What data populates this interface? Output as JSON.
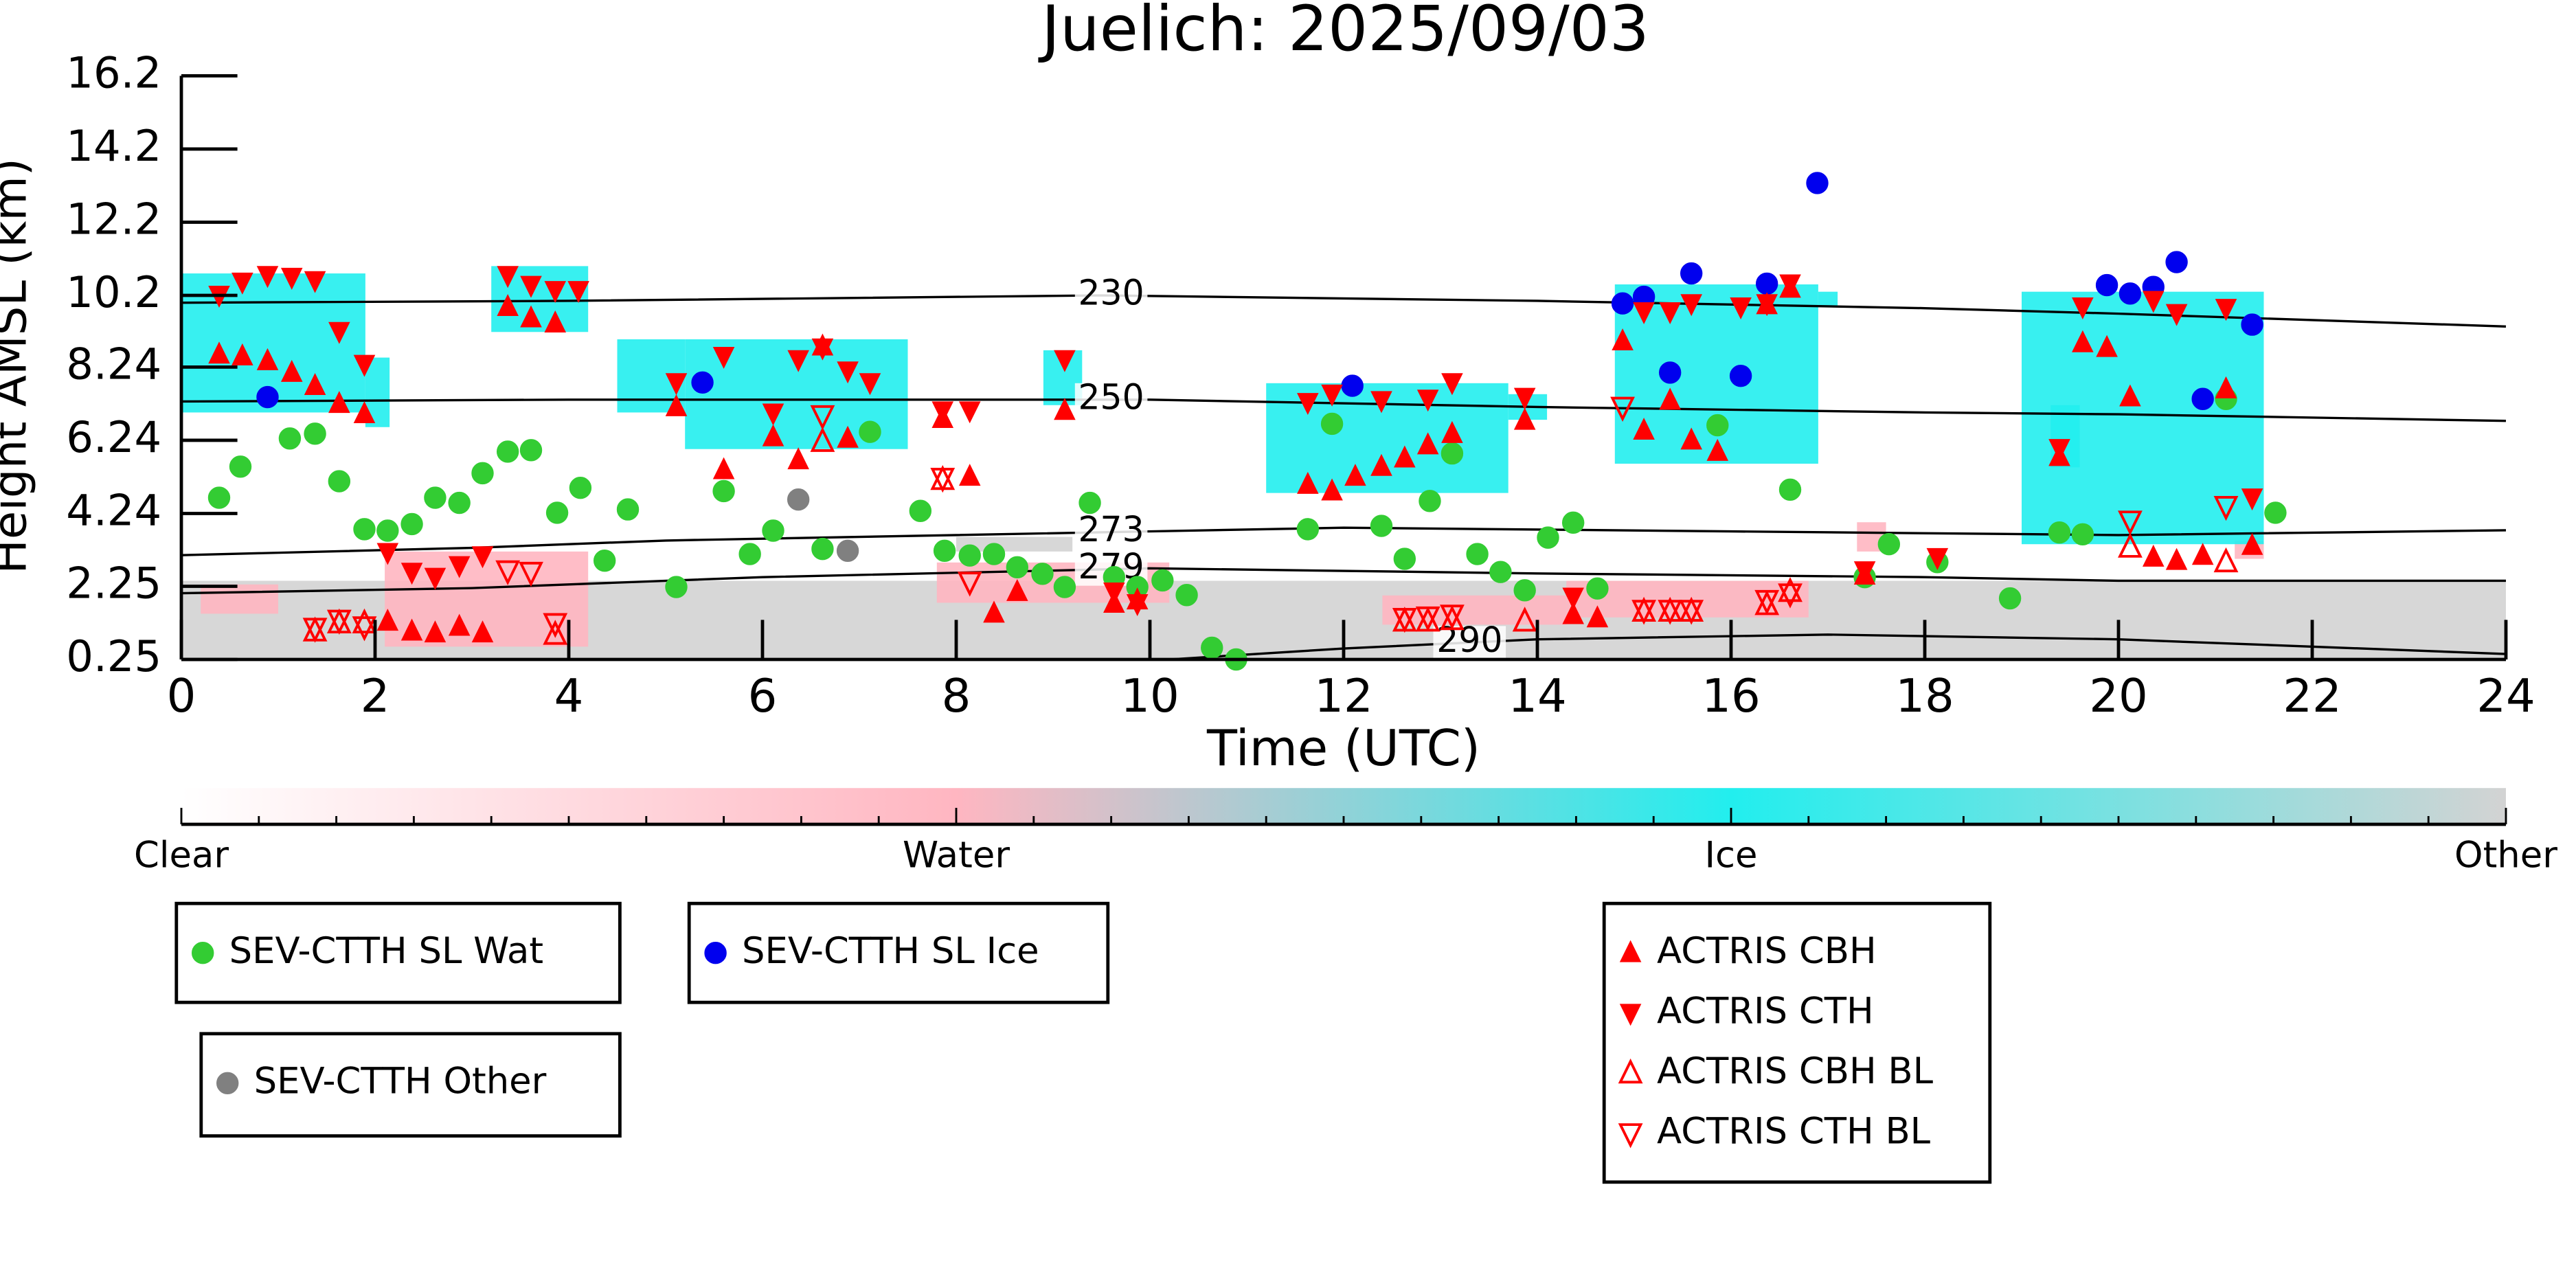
{
  "chart_data": {
    "type": "scatter",
    "title": "Juelich: 2025/09/03",
    "xlabel": "Time (UTC)",
    "ylabel": "Height AMSL (km)",
    "xlim": [
      0,
      24
    ],
    "ylim": [
      0.25,
      16.2
    ],
    "xticks": [
      0,
      2,
      4,
      6,
      8,
      10,
      12,
      14,
      16,
      18,
      20,
      22,
      24
    ],
    "yticks": [
      0.25,
      2.25,
      4.24,
      6.24,
      8.24,
      10.2,
      12.2,
      14.2,
      16.2
    ],
    "colorbar": {
      "labels": [
        "Clear",
        "Water",
        "Ice",
        "Other"
      ],
      "colors": [
        "#ffffff",
        "#ffb6c1",
        "#22eeee",
        "#d3d3d3"
      ]
    },
    "cloud_mask": [
      {
        "class": "Other",
        "x": [
          0,
          24
        ],
        "y": [
          0.25,
          2.4
        ]
      },
      {
        "class": "Other",
        "x": [
          8,
          9.2
        ],
        "y": [
          3.2,
          3.6
        ]
      },
      {
        "class": "Water",
        "x": [
          2.1,
          4.2
        ],
        "y": [
          0.6,
          3.2
        ]
      },
      {
        "class": "Water",
        "x": [
          0.2,
          1
        ],
        "y": [
          1.5,
          2.3
        ]
      },
      {
        "class": "Water",
        "x": [
          7.8,
          10.2
        ],
        "y": [
          1.8,
          2.9
        ]
      },
      {
        "class": "Water",
        "x": [
          12.4,
          14.3
        ],
        "y": [
          1.2,
          2
        ]
      },
      {
        "class": "Water",
        "x": [
          14.3,
          16.8
        ],
        "y": [
          1.4,
          2.4
        ]
      },
      {
        "class": "Water",
        "x": [
          17.3,
          17.6
        ],
        "y": [
          3.2,
          4
        ]
      },
      {
        "class": "Water",
        "x": [
          21.2,
          21.5
        ],
        "y": [
          3,
          3.5
        ]
      },
      {
        "class": "Ice",
        "x": [
          0,
          1.9
        ],
        "y": [
          7,
          10.8
        ]
      },
      {
        "class": "Ice",
        "x": [
          1.9,
          2.15
        ],
        "y": [
          6.6,
          8.5
        ]
      },
      {
        "class": "Ice",
        "x": [
          3.2,
          4.2
        ],
        "y": [
          9.2,
          11
        ]
      },
      {
        "class": "Ice",
        "x": [
          5.2,
          7.5
        ],
        "y": [
          6,
          9
        ]
      },
      {
        "class": "Ice",
        "x": [
          4.5,
          5.2
        ],
        "y": [
          7,
          9
        ]
      },
      {
        "class": "Ice",
        "x": [
          8.9,
          9.3
        ],
        "y": [
          7.2,
          8.7
        ]
      },
      {
        "class": "Ice",
        "x": [
          11.2,
          13.7
        ],
        "y": [
          4.8,
          7.8
        ]
      },
      {
        "class": "Ice",
        "x": [
          13.7,
          14.1
        ],
        "y": [
          6.8,
          7.5
        ]
      },
      {
        "class": "Ice",
        "x": [
          14.8,
          16.9
        ],
        "y": [
          5.6,
          10.5
        ]
      },
      {
        "class": "Ice",
        "x": [
          16.9,
          17.1
        ],
        "y": [
          9.9,
          10.3
        ]
      },
      {
        "class": "Ice",
        "x": [
          19,
          21.5
        ],
        "y": [
          3.4,
          10.3
        ]
      },
      {
        "class": "Ice",
        "x": [
          19.3,
          19.6
        ],
        "y": [
          5.5,
          7.2
        ]
      }
    ],
    "contours": [
      {
        "level": 230,
        "x": [
          0,
          4,
          9.5,
          14,
          18,
          20,
          24
        ],
        "y": [
          10.0,
          10.05,
          10.2,
          10.05,
          9.85,
          9.7,
          9.35
        ]
      },
      {
        "level": 250,
        "x": [
          0,
          4,
          10,
          14,
          18,
          20,
          24
        ],
        "y": [
          7.3,
          7.35,
          7.35,
          7.15,
          7.0,
          6.95,
          6.77
        ]
      },
      {
        "level": 273,
        "x": [
          0,
          3,
          5,
          8,
          12,
          16,
          20,
          24
        ],
        "y": [
          3.1,
          3.3,
          3.5,
          3.65,
          3.85,
          3.75,
          3.65,
          3.78
        ]
      },
      {
        "level": 279,
        "x": [
          0,
          3,
          6,
          10,
          14,
          18,
          20,
          24
        ],
        "y": [
          2.06,
          2.2,
          2.5,
          2.74,
          2.6,
          2.5,
          2.4,
          2.4
        ]
      },
      {
        "level": 290,
        "x": [
          10.2,
          12,
          14,
          17,
          20,
          24
        ],
        "y": [
          0.25,
          0.55,
          0.8,
          0.93,
          0.8,
          0.4
        ]
      }
    ],
    "series": [
      {
        "name": "SEV-CTTH SL Wat",
        "color": "#33cc33",
        "marker": "o",
        "filled": true,
        "x": [
          0.39,
          0.61,
          1.12,
          1.38,
          1.63,
          1.89,
          2.13,
          2.38,
          2.62,
          2.87,
          3.11,
          3.37,
          3.61,
          3.88,
          4.12,
          4.37,
          4.61,
          5.11,
          5.6,
          5.87,
          6.11,
          6.62,
          7.11,
          7.63,
          7.88,
          8.14,
          8.39,
          8.63,
          8.89,
          9.12,
          9.38,
          9.63,
          9.87,
          10.13,
          10.38,
          10.64,
          10.89,
          11.63,
          11.88,
          12.39,
          12.63,
          12.89,
          13.12,
          13.38,
          13.62,
          13.87,
          14.11,
          14.37,
          14.62,
          15.86,
          16.61,
          17.38,
          17.63,
          18.13,
          18.88,
          19.39,
          19.63,
          21.11,
          21.62
        ],
        "y": [
          4.67,
          5.52,
          6.29,
          6.42,
          5.12,
          3.81,
          3.77,
          3.95,
          4.67,
          4.53,
          5.34,
          5.93,
          5.97,
          4.26,
          4.94,
          2.95,
          4.35,
          2.23,
          4.85,
          3.13,
          3.77,
          3.27,
          6.47,
          4.31,
          3.22,
          3.09,
          3.13,
          2.77,
          2.59,
          2.23,
          4.53,
          2.5,
          2.23,
          2.41,
          2.01,
          0.57,
          0.25,
          3.81,
          6.69,
          3.9,
          3.0,
          4.58,
          5.88,
          3.13,
          2.64,
          2.14,
          3.58,
          3.99,
          2.19,
          6.65,
          4.89,
          2.5,
          3.4,
          2.91,
          1.92,
          3.72,
          3.67,
          7.37,
          4.26
        ]
      },
      {
        "name": "SEV-CTTH SL Ice",
        "color": "#0000ee",
        "marker": "o",
        "filled": true,
        "x": [
          0.89,
          5.38,
          12.09,
          14.88,
          15.1,
          15.37,
          15.59,
          16.1,
          16.37,
          16.89,
          19.88,
          20.12,
          20.36,
          20.6,
          20.87,
          21.38
        ],
        "y": [
          7.42,
          7.82,
          7.73,
          9.98,
          10.16,
          8.09,
          10.8,
          8.0,
          10.52,
          13.27,
          10.48,
          10.25,
          10.43,
          11.11,
          7.37,
          9.4
        ]
      },
      {
        "name": "SEV-CTTH Other",
        "color": "#808080",
        "marker": "o",
        "filled": true,
        "x": [
          6.37,
          6.88
        ],
        "y": [
          4.62,
          3.22
        ]
      },
      {
        "name": "ACTRIS CBH",
        "color": "#ff0000",
        "marker": "^",
        "filled": true,
        "x": [
          0.39,
          0.63,
          0.89,
          1.14,
          1.38,
          1.63,
          1.89,
          2.13,
          2.38,
          2.62,
          2.87,
          3.11,
          3.37,
          3.61,
          3.86,
          5.11,
          5.6,
          6.11,
          6.37,
          6.62,
          6.88,
          7.86,
          8.14,
          8.39,
          8.63,
          9.12,
          9.63,
          9.87,
          11.63,
          11.88,
          12.12,
          12.39,
          12.63,
          12.87,
          13.12,
          13.87,
          14.37,
          14.62,
          14.88,
          15.1,
          15.37,
          15.59,
          15.86,
          16.37,
          16.61,
          17.38,
          19.39,
          19.63,
          19.88,
          20.12,
          20.36,
          20.6,
          20.87,
          21.11,
          21.38
        ],
        "y": [
          8.59,
          8.54,
          8.41,
          8.09,
          7.73,
          7.24,
          6.96,
          1.29,
          1.02,
          0.97,
          1.15,
          0.97,
          9.89,
          9.58,
          9.44,
          7.15,
          5.43,
          6.33,
          5.7,
          8.81,
          6.29,
          6.83,
          5.25,
          1.51,
          2.1,
          7.05,
          1.78,
          1.87,
          5.03,
          4.85,
          5.25,
          5.52,
          5.75,
          6.11,
          6.42,
          6.78,
          1.47,
          1.38,
          8.95,
          6.51,
          7.33,
          6.24,
          5.93,
          9.94,
          10.39,
          2.55,
          5.79,
          8.9,
          8.77,
          7.42,
          3.04,
          2.95,
          3.09,
          7.64,
          3.36
        ]
      },
      {
        "name": "ACTRIS CTH",
        "color": "#ff0000",
        "marker": "v",
        "filled": true,
        "x": [
          0.39,
          0.63,
          0.89,
          1.14,
          1.38,
          1.63,
          1.89,
          2.13,
          2.38,
          2.62,
          2.87,
          3.11,
          3.37,
          3.61,
          3.86,
          4.1,
          5.11,
          5.6,
          6.11,
          6.37,
          6.62,
          6.88,
          7.11,
          7.86,
          8.14,
          9.12,
          9.63,
          9.87,
          11.63,
          11.88,
          12.39,
          12.87,
          13.12,
          13.87,
          14.37,
          15.1,
          15.37,
          15.59,
          16.1,
          16.37,
          16.61,
          17.38,
          18.13,
          19.39,
          19.63,
          20.36,
          20.6,
          21.11,
          21.38
        ],
        "y": [
          10.21,
          10.57,
          10.75,
          10.7,
          10.61,
          9.22,
          8.32,
          3.18,
          2.64,
          2.5,
          2.82,
          3.09,
          10.75,
          10.48,
          10.34,
          10.34,
          7.82,
          8.54,
          6.99,
          8.45,
          8.77,
          8.14,
          7.82,
          7.05,
          7.05,
          8.45,
          2.1,
          1.78,
          7.28,
          7.51,
          7.33,
          7.37,
          7.82,
          7.42,
          1.96,
          9.76,
          9.76,
          9.98,
          9.89,
          9.98,
          10.52,
          2.68,
          3.04,
          6.02,
          9.89,
          10.07,
          9.71,
          9.85,
          4.67
        ]
      },
      {
        "name": "ACTRIS CBH BL",
        "color": "#ff0000",
        "marker": "^",
        "filled": false,
        "x": [
          1.38,
          1.63,
          1.89,
          3.86,
          6.62,
          7.86,
          12.63,
          12.87,
          13.12,
          13.87,
          15.1,
          15.37,
          15.59,
          16.37,
          16.61,
          20.12,
          21.11
        ],
        "y": [
          1.02,
          1.24,
          1.24,
          0.93,
          6.2,
          5.16,
          1.29,
          1.29,
          1.33,
          1.29,
          1.56,
          1.56,
          1.56,
          1.74,
          2.1,
          3.31,
          2.91
        ]
      },
      {
        "name": "ACTRIS CTH BL",
        "color": "#ff0000",
        "marker": "v",
        "filled": false,
        "x": [
          1.38,
          1.63,
          1.89,
          3.37,
          3.61,
          3.86,
          6.62,
          7.86,
          8.14,
          12.63,
          12.87,
          13.12,
          14.88,
          15.1,
          15.37,
          15.59,
          16.37,
          16.61,
          20.12,
          21.11
        ],
        "y": [
          1.11,
          1.33,
          1.15,
          2.68,
          2.64,
          1.24,
          6.92,
          5.21,
          2.37,
          1.38,
          1.42,
          1.47,
          7.15,
          1.6,
          1.6,
          1.6,
          1.87,
          2.05,
          4.04,
          4.44
        ]
      }
    ]
  }
}
